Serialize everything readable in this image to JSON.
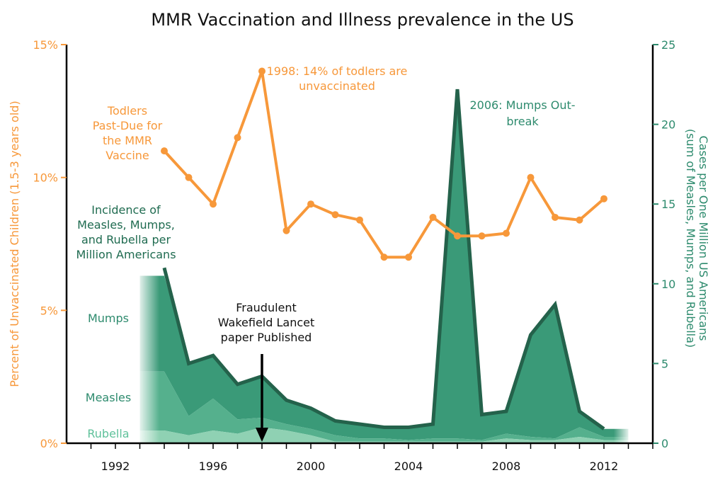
{
  "chart_data": {
    "type": "line",
    "title": "MMR Vaccination and Illness prevalence in the US",
    "x_ticks": [
      1992,
      1996,
      2000,
      2004,
      2008,
      2012
    ],
    "xlim": [
      1990,
      2014
    ],
    "left_axis": {
      "label": "Percent of Unvaccinated Children (1.5-3 years old)",
      "ylim": [
        0,
        15
      ],
      "ticks": [
        0,
        5,
        10,
        15
      ],
      "tick_labels": [
        "0%",
        "5%",
        "10%",
        "15%"
      ],
      "color": "#f7983a"
    },
    "right_axis": {
      "label_line1": "Cases per One Million US Americans",
      "label_line2": "(sum of Measles, Mumps, and Rubella)",
      "ylim": [
        0,
        25
      ],
      "ticks": [
        0,
        5,
        10,
        15,
        20,
        25
      ],
      "tick_labels": [
        "0",
        "5",
        "10",
        "15",
        "20",
        "25"
      ],
      "color": "#2e8b6e"
    },
    "line_series": {
      "name": "Todlers Past-Due for the MMR Vaccine",
      "axis": "left",
      "x": [
        1994,
        1995,
        1996,
        1997,
        1998,
        1999,
        2000,
        2001,
        2002,
        2003,
        2004,
        2005,
        2006,
        2007,
        2008,
        2009,
        2010,
        2011,
        2012
      ],
      "y": [
        11.0,
        10.0,
        9.0,
        11.5,
        14.0,
        8.0,
        9.0,
        8.6,
        8.4,
        7.0,
        7.0,
        8.5,
        7.8,
        7.8,
        7.9,
        10.0,
        8.5,
        8.4,
        9.2
      ]
    },
    "area_series": [
      {
        "name": "Rubella",
        "axis": "right",
        "x": [
          1993,
          1994,
          1995,
          1996,
          1997,
          1998,
          1999,
          2000,
          2001,
          2002,
          2003,
          2004,
          2005,
          2006,
          2007,
          2008,
          2009,
          2010,
          2011,
          2012,
          2013
        ],
        "y": [
          0.8,
          0.8,
          0.5,
          0.8,
          0.6,
          1.0,
          0.8,
          0.5,
          0.1,
          0.1,
          0.1,
          0.1,
          0.1,
          0.1,
          0.1,
          0.3,
          0.2,
          0.2,
          0.4,
          0.2,
          0.2
        ]
      },
      {
        "name": "Measles",
        "axis": "right",
        "x": [
          1993,
          1994,
          1995,
          1996,
          1997,
          1998,
          1999,
          2000,
          2001,
          2002,
          2003,
          2004,
          2005,
          2006,
          2007,
          2008,
          2009,
          2010,
          2011,
          2012,
          2013
        ],
        "y": [
          3.7,
          3.7,
          1.2,
          2.0,
          0.9,
          0.6,
          0.4,
          0.4,
          0.4,
          0.2,
          0.2,
          0.1,
          0.2,
          0.2,
          0.1,
          0.3,
          0.2,
          0.1,
          0.6,
          0.2,
          0.2
        ]
      },
      {
        "name": "Mumps",
        "axis": "right",
        "x": [
          1993,
          1994,
          1995,
          1996,
          1997,
          1998,
          1999,
          2000,
          2001,
          2002,
          2003,
          2004,
          2005,
          2006,
          2007,
          2008,
          2009,
          2010,
          2011,
          2012,
          2013
        ],
        "y": [
          6.0,
          6.0,
          3.3,
          2.7,
          2.2,
          2.6,
          1.5,
          1.3,
          0.9,
          0.9,
          0.7,
          0.8,
          0.9,
          21.9,
          1.6,
          1.4,
          6.3,
          8.4,
          1.0,
          0.5,
          0.5
        ]
      }
    ],
    "total_line": {
      "name": "Incidence of Measles, Mumps, and Rubella per Million Americans",
      "x": [
        1994,
        1995,
        1996,
        1997,
        1998,
        1999,
        2000,
        2001,
        2002,
        2003,
        2004,
        2005,
        2006,
        2007,
        2008,
        2009,
        2010,
        2011,
        2012
      ],
      "y": [
        11.0,
        5.0,
        5.5,
        3.7,
        4.2,
        2.7,
        2.2,
        1.4,
        1.2,
        1.0,
        1.0,
        1.2,
        22.2,
        1.8,
        2.0,
        6.8,
        8.7,
        2.0,
        0.9
      ]
    },
    "annotations": [
      {
        "id": "line-label",
        "lines": [
          "Todlers",
          "Past-Due for",
          "the MMR",
          "Vaccine"
        ]
      },
      {
        "id": "peak-1998",
        "lines": [
          "1998: 14% of todlers are",
          "unvaccinated"
        ]
      },
      {
        "id": "mumps-2006",
        "lines": [
          "2006: Mumps Out-",
          "break"
        ]
      },
      {
        "id": "incidence-label",
        "lines": [
          "Incidence of",
          "Measles, Mumps,",
          "and Rubella per",
          "Million Americans"
        ]
      },
      {
        "id": "wakefield",
        "lines": [
          "Fraudulent",
          "Wakefield Lancet",
          "paper Published"
        ],
        "x": 1998
      },
      {
        "id": "label-mumps",
        "lines": [
          "Mumps"
        ]
      },
      {
        "id": "label-measles",
        "lines": [
          "Measles"
        ]
      },
      {
        "id": "label-rubella",
        "lines": [
          "Rubella"
        ]
      }
    ],
    "colors": {
      "line": "#f7983a",
      "mumps": "#3a9a78",
      "measles": "#55b08d",
      "rubella": "#8fd1b3",
      "total_line": "#24624b",
      "arrow": "#000000",
      "label_text_green": "#2e8b6e",
      "label_text_dark": "#1f6b50"
    },
    "grid": false,
    "legend": "none"
  }
}
